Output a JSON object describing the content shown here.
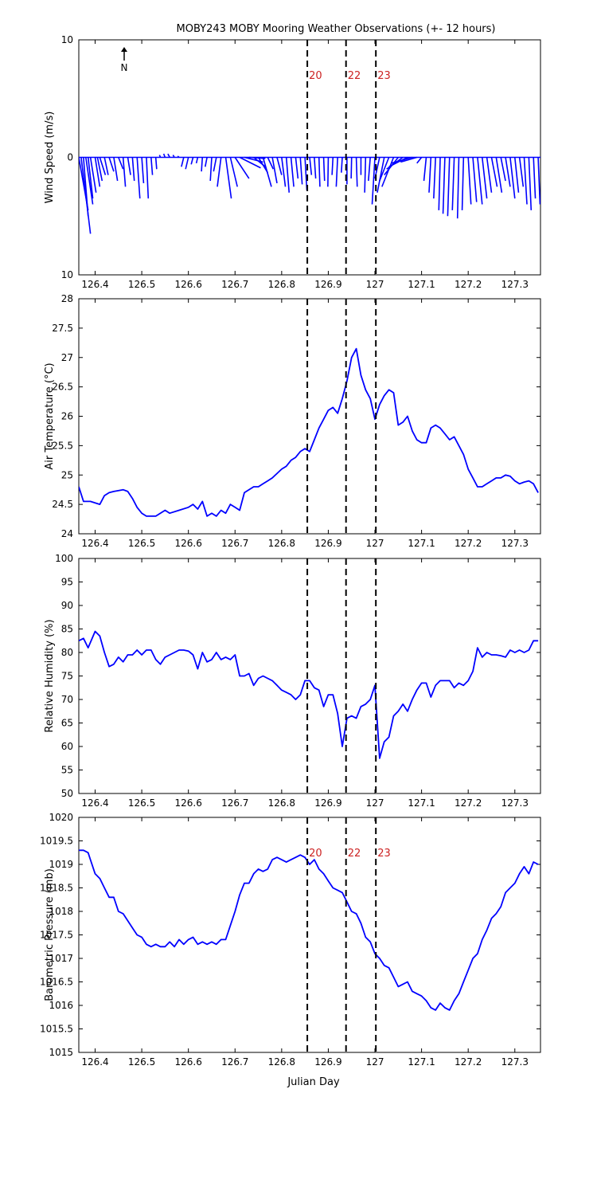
{
  "title": "MOBY243 MOBY Mooring Weather Observations (+- 12 hours)",
  "colors": {
    "series": "#0000ff",
    "marker_label": "#cc2222",
    "axes": "#000000"
  },
  "north_arrow_label": "N",
  "x_axis": {
    "label": "Julian Day",
    "range": [
      126.365,
      127.355
    ],
    "ticks": [
      126.4,
      126.5,
      126.6,
      126.7,
      126.8,
      126.9,
      127,
      127.1,
      127.2,
      127.3
    ],
    "tick_labels": [
      "126.4",
      "126.5",
      "126.6",
      "126.7",
      "126.8",
      "126.9",
      "127",
      "127.1",
      "127.2",
      "127.3"
    ]
  },
  "markers": [
    {
      "x": 126.855,
      "label": "20"
    },
    {
      "x": 126.938,
      "label": "22"
    },
    {
      "x": 127.002,
      "label": "23"
    }
  ],
  "chart_data": [
    {
      "type": "line",
      "id": "wind",
      "ylabel": "Wind Speed (m/s)",
      "ylim": [
        -10,
        10
      ],
      "yticks": [
        -10,
        0,
        10
      ],
      "ytick_labels": [
        "10",
        "0",
        "10"
      ],
      "show_marker_labels": true,
      "show_x_ticklabels": true,
      "wind_vectors": {
        "x": [
          126.365,
          126.37,
          126.375,
          126.38,
          126.385,
          126.39,
          126.4,
          126.405,
          126.41,
          126.42,
          126.43,
          126.44,
          126.45,
          126.46,
          126.47,
          126.48,
          126.49,
          126.5,
          126.51,
          126.52,
          126.53,
          126.54,
          126.55,
          126.56,
          126.57,
          126.58,
          126.59,
          126.6,
          126.61,
          126.62,
          126.63,
          126.64,
          126.65,
          126.66,
          126.67,
          126.68,
          126.69,
          126.7,
          126.71,
          126.72,
          126.73,
          126.74,
          126.75,
          126.76,
          126.77,
          126.78,
          126.79,
          126.8,
          126.81,
          126.82,
          126.83,
          126.84,
          126.85,
          126.86,
          126.87,
          126.88,
          126.89,
          126.9,
          126.91,
          126.92,
          126.93,
          126.94,
          126.95,
          126.96,
          126.97,
          126.98,
          126.99,
          127.0,
          127.01,
          127.02,
          127.03,
          127.04,
          127.05,
          127.06,
          127.07,
          127.08,
          127.09,
          127.1,
          127.11,
          127.12,
          127.13,
          127.14,
          127.15,
          127.16,
          127.17,
          127.18,
          127.19,
          127.2,
          127.21,
          127.22,
          127.23,
          127.24,
          127.25,
          127.26,
          127.27,
          127.28,
          127.29,
          127.3,
          127.31,
          127.32,
          127.33,
          127.34,
          127.35
        ],
        "u": [
          0.02,
          0.02,
          0.01,
          0.015,
          0.01,
          0.012,
          0.01,
          0.01,
          0.012,
          0.008,
          0.01,
          0.008,
          0.01,
          0.005,
          0.006,
          0.004,
          0.006,
          0.004,
          0.004,
          0.003,
          0.002,
          -0.002,
          -0.003,
          -0.004,
          -0.003,
          -0.003,
          -0.005,
          -0.006,
          -0.004,
          -0.003,
          -0.002,
          -0.004,
          -0.003,
          -0.006,
          -0.008,
          0.012,
          0.015,
          0.03,
          0.045,
          0.04,
          0.035,
          0.025,
          0.02,
          0.018,
          0.012,
          0.01,
          0.01,
          0.008,
          0.006,
          0.006,
          0.005,
          0.004,
          0.004,
          0.004,
          0.003,
          0.002,
          0.002,
          -0.001,
          -0.002,
          -0.003,
          -0.002,
          0.0,
          -0.001,
          0.002,
          0.0,
          -0.002,
          -0.004,
          -0.006,
          -0.01,
          -0.015,
          -0.02,
          -0.025,
          -0.03,
          -0.035,
          -0.04,
          -0.045,
          -0.035,
          -0.01,
          -0.005,
          -0.004,
          -0.004,
          -0.003,
          -0.004,
          -0.004,
          -0.004,
          -0.003,
          -0.003,
          0.006,
          0.008,
          0.01,
          0.01,
          0.01,
          0.012,
          0.012,
          0.01,
          0.01,
          0.01,
          0.008,
          0.008,
          0.006,
          0.005,
          0.004,
          0.004
        ],
        "v": [
          -4.5,
          -6.5,
          -5.0,
          -4.0,
          -3.5,
          -3.0,
          -2.5,
          -2.0,
          -1.5,
          -1.5,
          -1.2,
          -2.0,
          -1.0,
          -2.5,
          -1.5,
          -2.0,
          -3.5,
          -2.2,
          -3.5,
          -1.5,
          -1.0,
          0.2,
          0.3,
          0.3,
          0.2,
          0.1,
          -0.8,
          -1.0,
          -0.6,
          -0.5,
          -1.2,
          -0.8,
          -2.0,
          -1.2,
          -2.5,
          -3.5,
          -2.5,
          -1.8,
          -0.9,
          -0.4,
          -0.1,
          -0.8,
          -1.3,
          -2.5,
          -1.0,
          -2.2,
          -1.5,
          -2.5,
          -3.0,
          -2.5,
          -1.8,
          -2.3,
          -2.8,
          -1.5,
          -1.8,
          -2.5,
          -2.0,
          -2.5,
          -1.5,
          -2.5,
          -1.3,
          -2.3,
          -1.8,
          -2.5,
          -1.5,
          -3.0,
          -2.0,
          -4.0,
          -1.8,
          -3.0,
          -2.0,
          -2.5,
          -1.5,
          -1.0,
          -0.8,
          -0.5,
          -0.4,
          -0.5,
          -2.0,
          -3.0,
          -3.5,
          -4.5,
          -4.8,
          -5.0,
          -4.5,
          -5.2,
          -4.5,
          -4.0,
          -3.8,
          -4.0,
          -3.5,
          -3.0,
          -2.5,
          -3.0,
          -2.0,
          -2.5,
          -3.5,
          -3.0,
          -2.5,
          -4.0,
          -4.5,
          -3.5,
          -4.0
        ]
      }
    },
    {
      "type": "line",
      "id": "air_temp",
      "ylabel": "Air Temperature (°C)",
      "ylim": [
        24,
        28
      ],
      "yticks": [
        24,
        24.5,
        25,
        25.5,
        26,
        26.5,
        27,
        27.5,
        28
      ],
      "ytick_labels": [
        "24",
        "24.5",
        "25",
        "25.5",
        "26",
        "26.5",
        "27",
        "27.5",
        "28"
      ],
      "show_marker_labels": false,
      "show_x_ticklabels": true,
      "x": [
        126.365,
        126.375,
        126.39,
        126.41,
        126.42,
        126.43,
        126.44,
        126.46,
        126.47,
        126.48,
        126.49,
        126.5,
        126.51,
        126.52,
        126.53,
        126.55,
        126.56,
        126.58,
        126.6,
        126.61,
        126.62,
        126.63,
        126.64,
        126.65,
        126.66,
        126.67,
        126.68,
        126.69,
        126.7,
        126.71,
        126.72,
        126.74,
        126.75,
        126.76,
        126.77,
        126.78,
        126.8,
        126.81,
        126.82,
        126.83,
        126.84,
        126.85,
        126.86,
        126.87,
        126.88,
        126.89,
        126.9,
        126.91,
        126.92,
        126.93,
        126.94,
        126.95,
        126.96,
        126.97,
        126.98,
        126.99,
        127.0,
        127.01,
        127.02,
        127.03,
        127.04,
        127.05,
        127.06,
        127.07,
        127.08,
        127.09,
        127.1,
        127.11,
        127.12,
        127.13,
        127.14,
        127.15,
        127.16,
        127.17,
        127.18,
        127.19,
        127.2,
        127.21,
        127.22,
        127.23,
        127.24,
        127.25,
        127.26,
        127.27,
        127.28,
        127.29,
        127.3,
        127.31,
        127.32,
        127.33,
        127.34,
        127.35
      ],
      "y": [
        24.8,
        24.55,
        24.55,
        24.5,
        24.65,
        24.7,
        24.72,
        24.75,
        24.72,
        24.6,
        24.45,
        24.35,
        24.3,
        24.3,
        24.3,
        24.4,
        24.35,
        24.4,
        24.45,
        24.5,
        24.42,
        24.55,
        24.3,
        24.35,
        24.3,
        24.4,
        24.35,
        24.5,
        24.45,
        24.4,
        24.7,
        24.8,
        24.8,
        24.85,
        24.9,
        24.95,
        25.1,
        25.15,
        25.25,
        25.3,
        25.4,
        25.45,
        25.4,
        25.6,
        25.8,
        25.95,
        26.1,
        26.15,
        26.05,
        26.3,
        26.6,
        27.0,
        27.15,
        26.7,
        26.45,
        26.3,
        25.95,
        26.2,
        26.35,
        26.45,
        26.4,
        25.85,
        25.9,
        26.0,
        25.75,
        25.6,
        25.55,
        25.55,
        25.8,
        25.85,
        25.8,
        25.7,
        25.6,
        25.65,
        25.5,
        25.35,
        25.1,
        24.95,
        24.8,
        24.8,
        24.85,
        24.9,
        24.95,
        24.95,
        25.0,
        24.98,
        24.9,
        24.85,
        24.88,
        24.9,
        24.85,
        24.7
      ]
    },
    {
      "type": "line",
      "id": "humidity",
      "ylabel": "Relative Humidity (%)",
      "ylim": [
        50,
        100
      ],
      "yticks": [
        50,
        55,
        60,
        65,
        70,
        75,
        80,
        85,
        90,
        95,
        100
      ],
      "ytick_labels": [
        "50",
        "55",
        "60",
        "65",
        "70",
        "75",
        "80",
        "85",
        "90",
        "95",
        "100"
      ],
      "show_marker_labels": false,
      "show_x_ticklabels": true,
      "x": [
        126.365,
        126.375,
        126.385,
        126.4,
        126.41,
        126.42,
        126.43,
        126.44,
        126.45,
        126.46,
        126.47,
        126.48,
        126.49,
        126.5,
        126.51,
        126.52,
        126.53,
        126.54,
        126.55,
        126.56,
        126.57,
        126.58,
        126.59,
        126.6,
        126.61,
        126.62,
        126.63,
        126.64,
        126.65,
        126.66,
        126.67,
        126.68,
        126.69,
        126.7,
        126.71,
        126.72,
        126.73,
        126.74,
        126.75,
        126.76,
        126.77,
        126.78,
        126.79,
        126.8,
        126.81,
        126.82,
        126.83,
        126.84,
        126.85,
        126.86,
        126.87,
        126.88,
        126.89,
        126.9,
        126.91,
        126.92,
        126.93,
        126.94,
        126.95,
        126.96,
        126.97,
        126.98,
        126.99,
        127.0,
        127.01,
        127.02,
        127.03,
        127.04,
        127.05,
        127.06,
        127.07,
        127.08,
        127.09,
        127.1,
        127.11,
        127.12,
        127.13,
        127.14,
        127.15,
        127.16,
        127.17,
        127.18,
        127.19,
        127.2,
        127.21,
        127.22,
        127.23,
        127.24,
        127.25,
        127.26,
        127.27,
        127.28,
        127.29,
        127.3,
        127.31,
        127.32,
        127.33,
        127.34,
        127.35
      ],
      "y": [
        82.5,
        83.0,
        81.0,
        84.5,
        83.5,
        80.0,
        77.0,
        77.5,
        79.0,
        78.0,
        79.5,
        79.5,
        80.5,
        79.5,
        80.5,
        80.5,
        78.5,
        77.5,
        79.0,
        79.5,
        80.0,
        80.5,
        80.5,
        80.3,
        79.5,
        76.5,
        80.0,
        78.0,
        78.5,
        80.0,
        78.5,
        79.0,
        78.5,
        79.5,
        75.0,
        75.0,
        75.5,
        73.0,
        74.5,
        75.0,
        74.5,
        74.0,
        73.0,
        72.0,
        71.5,
        71.0,
        70.0,
        71.0,
        74.0,
        74.0,
        72.5,
        72.0,
        68.5,
        71.0,
        71.0,
        67.0,
        60.0,
        66.0,
        66.5,
        66.0,
        68.5,
        69.0,
        70.0,
        73.0,
        57.5,
        61.0,
        62.0,
        66.5,
        67.5,
        69.0,
        67.5,
        70.0,
        72.0,
        73.5,
        73.5,
        70.5,
        73.0,
        74.0,
        74.0,
        74.0,
        72.5,
        73.5,
        73.0,
        74.0,
        76.0,
        81.0,
        79.0,
        80.0,
        79.5,
        79.5,
        79.3,
        79.0,
        80.5,
        80.0,
        80.5,
        80.0,
        80.5,
        82.5,
        82.5
      ]
    },
    {
      "type": "line",
      "id": "pressure",
      "ylabel": "Barometric Pressure (mb)",
      "ylim": [
        1015,
        1020
      ],
      "yticks": [
        1015,
        1015.5,
        1016,
        1016.5,
        1017,
        1017.5,
        1018,
        1018.5,
        1019,
        1019.5,
        1020
      ],
      "ytick_labels": [
        "1015",
        "1015.5",
        "1016",
        "1016.5",
        "1017",
        "1017.5",
        "1018",
        "1018.5",
        "1019",
        "1019.5",
        "1020"
      ],
      "show_marker_labels": true,
      "show_x_ticklabels": true,
      "x": [
        126.365,
        126.375,
        126.385,
        126.39,
        126.4,
        126.41,
        126.42,
        126.43,
        126.44,
        126.45,
        126.46,
        126.47,
        126.48,
        126.49,
        126.5,
        126.51,
        126.52,
        126.53,
        126.54,
        126.55,
        126.56,
        126.57,
        126.58,
        126.59,
        126.6,
        126.61,
        126.62,
        126.63,
        126.64,
        126.65,
        126.66,
        126.67,
        126.68,
        126.69,
        126.7,
        126.71,
        126.72,
        126.73,
        126.74,
        126.75,
        126.76,
        126.77,
        126.78,
        126.79,
        126.8,
        126.81,
        126.82,
        126.83,
        126.84,
        126.85,
        126.86,
        126.87,
        126.88,
        126.89,
        126.9,
        126.91,
        126.92,
        126.93,
        126.94,
        126.95,
        126.96,
        126.97,
        126.98,
        126.99,
        127.0,
        127.01,
        127.02,
        127.03,
        127.04,
        127.05,
        127.06,
        127.07,
        127.08,
        127.09,
        127.1,
        127.11,
        127.12,
        127.13,
        127.14,
        127.15,
        127.16,
        127.17,
        127.18,
        127.19,
        127.2,
        127.21,
        127.22,
        127.23,
        127.24,
        127.25,
        127.26,
        127.27,
        127.28,
        127.29,
        127.3,
        127.31,
        127.32,
        127.33,
        127.34,
        127.35
      ],
      "y": [
        1019.3,
        1019.3,
        1019.25,
        1019.1,
        1018.8,
        1018.7,
        1018.5,
        1018.3,
        1018.3,
        1018.0,
        1017.95,
        1017.8,
        1017.65,
        1017.5,
        1017.45,
        1017.3,
        1017.25,
        1017.3,
        1017.25,
        1017.25,
        1017.35,
        1017.25,
        1017.4,
        1017.3,
        1017.4,
        1017.45,
        1017.3,
        1017.35,
        1017.3,
        1017.35,
        1017.3,
        1017.4,
        1017.4,
        1017.7,
        1018.0,
        1018.35,
        1018.6,
        1018.6,
        1018.8,
        1018.9,
        1018.85,
        1018.9,
        1019.1,
        1019.15,
        1019.1,
        1019.05,
        1019.1,
        1019.15,
        1019.2,
        1019.15,
        1019.0,
        1019.1,
        1018.9,
        1018.8,
        1018.65,
        1018.5,
        1018.45,
        1018.4,
        1018.2,
        1018.0,
        1017.95,
        1017.75,
        1017.45,
        1017.35,
        1017.1,
        1017.0,
        1016.85,
        1016.8,
        1016.6,
        1016.4,
        1016.45,
        1016.5,
        1016.3,
        1016.25,
        1016.2,
        1016.1,
        1015.95,
        1015.9,
        1016.05,
        1015.95,
        1015.9,
        1016.1,
        1016.25,
        1016.5,
        1016.75,
        1017.0,
        1017.1,
        1017.4,
        1017.6,
        1017.85,
        1017.95,
        1018.1,
        1018.4,
        1018.5,
        1018.6,
        1018.8,
        1018.95,
        1018.8,
        1019.05,
        1019.0
      ]
    }
  ]
}
